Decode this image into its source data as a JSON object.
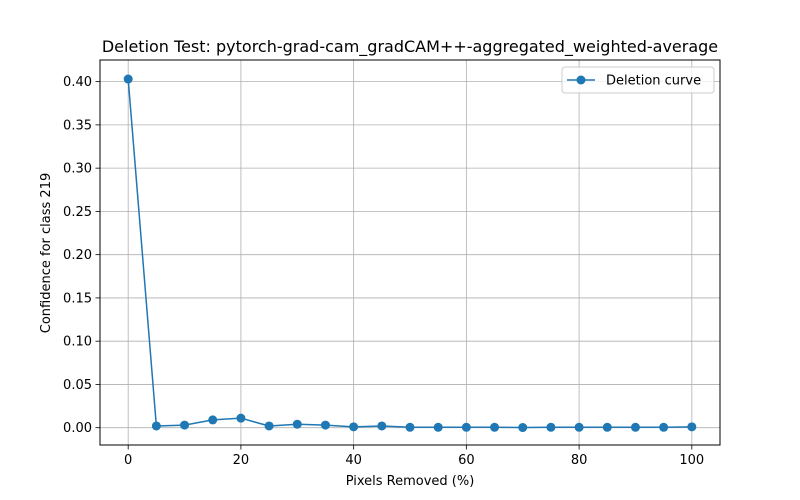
{
  "chart_data": {
    "type": "line",
    "title": "Deletion Test: pytorch-grad-cam_gradCAM++-aggregated_weighted-average",
    "xlabel": "Pixels Removed (%)",
    "ylabel": "Confidence for class 219",
    "xlim": [
      -5,
      105
    ],
    "ylim": [
      -0.02,
      0.425
    ],
    "xticks": [
      0,
      20,
      40,
      60,
      80,
      100
    ],
    "yticks": [
      0.0,
      0.05,
      0.1,
      0.15,
      0.2,
      0.25,
      0.3,
      0.35,
      0.4
    ],
    "ytick_labels": [
      "0.00",
      "0.05",
      "0.10",
      "0.15",
      "0.20",
      "0.25",
      "0.30",
      "0.35",
      "0.40"
    ],
    "grid": true,
    "legend_position": "top-right",
    "series": [
      {
        "name": "Deletion curve",
        "color": "#1f77b4",
        "marker": "circle",
        "x": [
          0,
          5,
          10,
          15,
          20,
          25,
          30,
          35,
          40,
          45,
          50,
          55,
          60,
          65,
          70,
          75,
          80,
          85,
          90,
          95,
          100
        ],
        "y": [
          0.403,
          0.002,
          0.003,
          0.009,
          0.011,
          0.002,
          0.004,
          0.003,
          0.001,
          0.002,
          0.0005,
          0.0005,
          0.0005,
          0.0005,
          0.0002,
          0.0005,
          0.0005,
          0.0005,
          0.0005,
          0.0005,
          0.001
        ]
      }
    ]
  }
}
